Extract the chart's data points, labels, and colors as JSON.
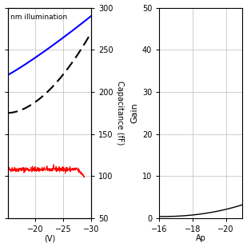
{
  "left_plot": {
    "title_text": "nm illumination",
    "xlabel": "(V)",
    "ylabel_right": "Capacitance (fF)",
    "xlim": [
      -15,
      -30
    ],
    "ylim": [
      50,
      300
    ],
    "xticks": [
      -20,
      -25,
      -30
    ],
    "yticks": [
      50,
      100,
      150,
      200,
      250,
      300
    ],
    "grid_color": "#bbbbbb",
    "background_color": "#ffffff",
    "text_color": "#000000"
  },
  "right_plot": {
    "xlabel": "Ap",
    "ylabel": "Gain",
    "xlim": [
      -16,
      -21
    ],
    "ylim": [
      0,
      50
    ],
    "xticks": [
      -16,
      -18,
      -20
    ],
    "yticks": [
      0,
      10,
      20,
      30,
      40,
      50
    ],
    "grid_color": "#bbbbbb",
    "background_color": "#ffffff"
  }
}
